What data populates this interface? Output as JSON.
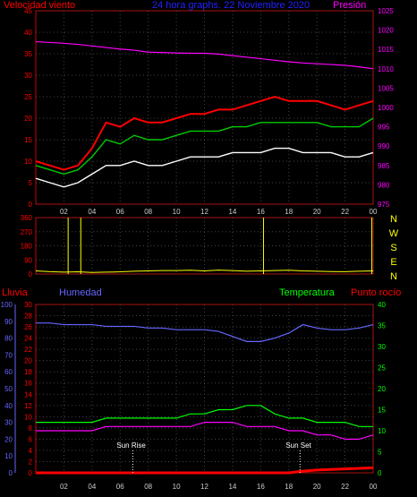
{
  "header": {
    "left_title": "Velocidad viento",
    "center_title": "24 hora graphs. 22 Noviembre 2020",
    "right_title": "Presión"
  },
  "panel_labels": {
    "rain": "Lluvia",
    "humidity": "Humedad",
    "temperature": "Temperatura",
    "dewpoint": "Punto rocío"
  },
  "compass": [
    "N",
    "W",
    "S",
    "E",
    "N"
  ],
  "annotations": {
    "sunrise": "Sun Rise",
    "sunset": "Sun Set"
  },
  "colors": {
    "wind_gust": "#ff0000",
    "wind_avg": "#00cc00",
    "wind_speed": "#ffffff",
    "pressure": "#ff00ff",
    "direction": "#ffff00",
    "humidity": "#6666ff",
    "temperature": "#00ff00",
    "dewpoint": "#ff00ff",
    "rain": "#ff0000",
    "axis": "#cc0000",
    "grid": "#444444"
  },
  "chart_data": [
    {
      "id": "wind",
      "type": "line",
      "x_ticks": [
        "02",
        "04",
        "06",
        "08",
        "10",
        "12",
        "14",
        "16",
        "18",
        "20",
        "22",
        "00"
      ],
      "left_axis": {
        "ylim": [
          0,
          45
        ],
        "ticks": [
          0,
          5,
          10,
          15,
          20,
          25,
          30,
          35,
          40,
          45
        ]
      },
      "right_axis": {
        "ylim": [
          975,
          1025
        ],
        "ticks": [
          975,
          980,
          985,
          990,
          995,
          1000,
          1005,
          1010,
          1015,
          1020,
          1025
        ]
      },
      "x": [
        0,
        1,
        2,
        3,
        4,
        5,
        6,
        7,
        8,
        9,
        10,
        11,
        12,
        13,
        14,
        15,
        16,
        17,
        18,
        19,
        20,
        21,
        22,
        23,
        24
      ],
      "series": [
        {
          "name": "Velocidad viento",
          "axis": "left",
          "values": [
            10,
            9,
            8,
            9,
            13,
            19,
            18,
            20,
            19,
            19,
            20,
            21,
            21,
            22,
            22,
            23,
            24,
            25,
            24,
            24,
            24,
            23,
            22,
            23,
            24
          ]
        },
        {
          "axis": "left",
          "values": [
            9,
            8,
            7,
            8,
            11,
            15,
            14,
            16,
            15,
            15,
            16,
            17,
            17,
            17,
            18,
            18,
            19,
            19,
            19,
            19,
            19,
            18,
            18,
            18,
            20
          ]
        },
        {
          "axis": "left",
          "values": [
            6,
            5,
            4,
            5,
            7,
            9,
            9,
            10,
            9,
            9,
            10,
            11,
            11,
            11,
            12,
            12,
            12,
            13,
            13,
            12,
            12,
            12,
            11,
            11,
            12
          ]
        },
        {
          "name": "Presión",
          "axis": "right",
          "values": [
            1017,
            1016.8,
            1016.6,
            1016.3,
            1015.9,
            1015.5,
            1015.1,
            1014.8,
            1014.3,
            1014.2,
            1014.1,
            1014.0,
            1014.0,
            1013.8,
            1013.4,
            1013.0,
            1012.6,
            1012.2,
            1011.8,
            1011.5,
            1011.3,
            1011.1,
            1010.9,
            1010.5,
            1010.0
          ]
        }
      ]
    },
    {
      "id": "direction",
      "type": "line",
      "ylim": [
        0,
        360
      ],
      "y_ticks": [
        0,
        90,
        180,
        270,
        360
      ],
      "x": [
        0,
        1,
        2,
        3,
        4,
        5,
        6,
        7,
        8,
        9,
        10,
        11,
        12,
        13,
        14,
        15,
        16,
        17,
        18,
        19,
        20,
        21,
        22,
        23,
        24
      ],
      "values": [
        20,
        15,
        12,
        14,
        10,
        12,
        14,
        18,
        20,
        22,
        22,
        24,
        20,
        25,
        22,
        18,
        20,
        22,
        24,
        20,
        18,
        16,
        15,
        18,
        20
      ],
      "spikes": [
        {
          "x": 2.3,
          "value": 360
        },
        {
          "x": 3.2,
          "value": 360
        },
        {
          "x": 16.2,
          "value": 360
        },
        {
          "x": 23.9,
          "value": 360
        }
      ]
    },
    {
      "id": "climate",
      "type": "line",
      "x_ticks": [
        "02",
        "04",
        "06",
        "08",
        "10",
        "12",
        "14",
        "16",
        "18",
        "20",
        "22",
        "00"
      ],
      "left_axes": {
        "humidity": {
          "ylim": [
            0,
            100
          ],
          "ticks": [
            0,
            10,
            20,
            30,
            40,
            50,
            60,
            70,
            80,
            90,
            100
          ]
        },
        "rain": {
          "ylim": [
            0,
            30
          ],
          "ticks": [
            0,
            2,
            4,
            6,
            8,
            10,
            12,
            14,
            16,
            18,
            20,
            22,
            24,
            26,
            28,
            30
          ]
        }
      },
      "right_axis": {
        "ylim": [
          0,
          40
        ],
        "ticks": [
          0,
          5,
          10,
          15,
          20,
          25,
          30,
          35,
          40
        ]
      },
      "x": [
        0,
        1,
        2,
        3,
        4,
        5,
        6,
        7,
        8,
        9,
        10,
        11,
        12,
        13,
        14,
        15,
        16,
        17,
        18,
        19,
        20,
        21,
        22,
        23,
        24
      ],
      "series": [
        {
          "name": "Humedad",
          "axis": "humidity",
          "values": [
            89,
            89,
            88,
            88,
            88,
            87,
            87,
            87,
            86,
            86,
            85,
            85,
            85,
            84,
            81,
            78,
            78,
            80,
            83,
            88,
            86,
            85,
            85,
            86,
            88
          ]
        },
        {
          "name": "Temperatura",
          "axis": "temp",
          "values": [
            12,
            12,
            12,
            12,
            12,
            13,
            13,
            13,
            13,
            13,
            13,
            14,
            14,
            15,
            15,
            16,
            16,
            14,
            13,
            13,
            12,
            12,
            12,
            11,
            11
          ]
        },
        {
          "name": "Punto rocío",
          "axis": "temp",
          "values": [
            10,
            10,
            10,
            10,
            10,
            11,
            11,
            11,
            11,
            11,
            11,
            11,
            12,
            12,
            12,
            11,
            11,
            11,
            10,
            10,
            9,
            9,
            8,
            8,
            9
          ]
        },
        {
          "name": "Lluvia",
          "axis": "rain",
          "values": [
            0,
            0,
            0,
            0,
            0,
            0,
            0,
            0,
            0,
            0,
            0,
            0,
            0,
            0,
            0,
            0,
            0,
            0,
            0,
            0.3,
            0.5,
            0.6,
            0.7,
            0.8,
            0.9
          ]
        }
      ],
      "events": {
        "sunrise_x": 6.9,
        "sunset_x": 18.8
      }
    }
  ]
}
